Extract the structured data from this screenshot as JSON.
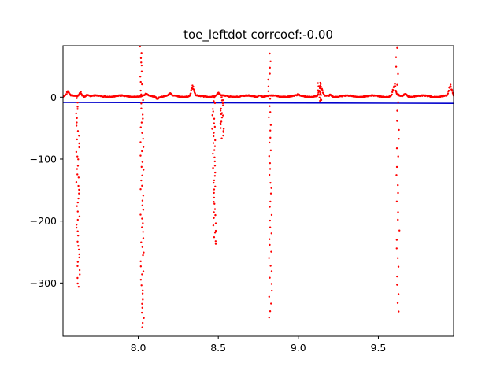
{
  "chart_data": {
    "type": "scatter",
    "title": "toe_leftdot corrcoef:-0.00",
    "xlabel": "",
    "ylabel": "",
    "xlim": [
      7.53,
      9.97
    ],
    "ylim": [
      -386,
      83
    ],
    "x_ticks": [
      {
        "value": 8.0,
        "label": "8.0"
      },
      {
        "value": 8.5,
        "label": "8.5"
      },
      {
        "value": 9.0,
        "label": "9.0"
      },
      {
        "value": 9.5,
        "label": "9.5"
      }
    ],
    "y_ticks": [
      {
        "value": 0,
        "label": "0"
      },
      {
        "value": -100,
        "label": "−100"
      },
      {
        "value": -200,
        "label": "−200"
      },
      {
        "value": -300,
        "label": "−300"
      }
    ],
    "grid": false,
    "point_color": "#ff0000",
    "line_color": "#0000cc",
    "fit_line": {
      "x": [
        7.53,
        9.97
      ],
      "y": [
        -8.5,
        -10.0
      ]
    },
    "baseline": {
      "y": 1.5,
      "bumps": [
        {
          "x": 7.56,
          "amp": 7
        },
        {
          "x": 7.64,
          "amp": 8
        },
        {
          "x": 7.68,
          "amp": 3
        },
        {
          "x": 8.05,
          "amp": 3
        },
        {
          "x": 8.12,
          "amp": -4
        },
        {
          "x": 8.2,
          "amp": 4
        },
        {
          "x": 8.34,
          "amp": 18
        },
        {
          "x": 8.5,
          "amp": 5
        },
        {
          "x": 8.76,
          "amp": 3
        },
        {
          "x": 9.0,
          "amp": 2
        },
        {
          "x": 9.14,
          "amp": 20
        },
        {
          "x": 9.2,
          "amp": 3
        },
        {
          "x": 9.6,
          "amp": 22
        },
        {
          "x": 9.67,
          "amp": 5
        },
        {
          "x": 9.95,
          "amp": 22
        }
      ]
    },
    "spike_clusters": [
      {
        "x": 7.62,
        "min": -307,
        "max": 0,
        "n": 46
      },
      {
        "x": 8.02,
        "min": -372,
        "max": 80,
        "n": 60
      },
      {
        "x": 8.47,
        "min": -237,
        "max": 0,
        "n": 42
      },
      {
        "x": 8.52,
        "min": -65,
        "max": 0,
        "n": 20
      },
      {
        "x": 8.82,
        "min": -354,
        "max": 70,
        "n": 42
      },
      {
        "x": 9.13,
        "min": -8,
        "max": 25,
        "n": 14
      },
      {
        "x": 9.62,
        "min": -347,
        "max": 80,
        "n": 30
      }
    ]
  }
}
